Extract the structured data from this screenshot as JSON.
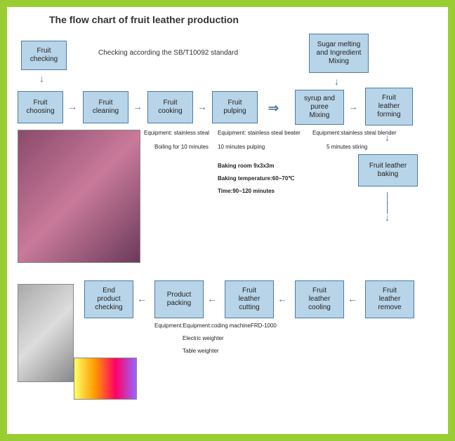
{
  "title": "The flow chart of fruit leather production",
  "subtitle": "Checking according the SB/T10092 standard",
  "boxes": {
    "fruit_checking": "Fruit\nchecking",
    "fruit_choosing": "Fruit\nchoosing",
    "fruit_cleaning": "Fruit\ncleaning",
    "fruit_cooking": "Fruit\ncooking",
    "fruit_pulping": "Fruit\npulping",
    "sugar_melting": "Sugar melting\nand Ingredient\nMixing",
    "syrup_mixing": "syrup and\npuree\nMixing",
    "leather_forming": "Fruit\nleather\nforming",
    "leather_baking": "Fruit leather\nbaking",
    "leather_remove": "Fruit\nleather\nremove",
    "leather_cooling": "Fruit\nleather\ncooling",
    "leather_cutting": "Fruit\nleather\ncutting",
    "product_packing": "Product\npacking",
    "end_checking": "End\nproduct\nchecking"
  },
  "annotations": {
    "cooking_eq": "Equipment: stainless steal",
    "cooking_time": "Boiling for 10 minutes",
    "pulping_eq": "Equipment: stainless steal beater",
    "pulping_time": "10 minutes pulping",
    "mixing_eq": "Equipment:stainless steal blender",
    "mixing_time": "5 minutes stiring",
    "baking_room": "Baking room  9x3x3m",
    "baking_temp": "Baking temperature:60~70℃",
    "baking_time": "Time:90~120 minutes",
    "packing_eq": "Equipment:Equipment:coding machineFRD-1000",
    "packing_w1": "Electric  weighter",
    "packing_w2": "Table weighter"
  },
  "colors": {
    "box_bg": "#b8d4e8",
    "box_border": "#4a7ba6",
    "border": "#9acd32",
    "text": "#222"
  }
}
